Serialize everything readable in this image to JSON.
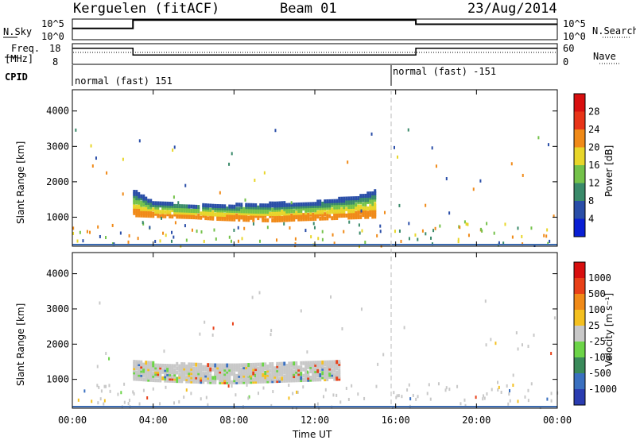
{
  "header": {
    "station": "Kerguelen (fitACF)",
    "beam": "Beam 01",
    "date": "23/Aug/2014"
  },
  "status_panels": {
    "nsky_label": "N.Sky",
    "nsky_ticks": [
      "10^5",
      "10^0"
    ],
    "nsearch_label": "N.Search",
    "nsearch_ticks": [
      "10^5",
      "10^0"
    ],
    "freq_label_1": "Freq.",
    "freq_label_2": "[MHz]",
    "freq_ticks": [
      "18",
      "8"
    ],
    "nave_label": "Nave",
    "nave_ticks": [
      "60",
      "0"
    ],
    "cpid_label": "CPID",
    "cpid_segments": [
      {
        "label": "normal (fast) 151",
        "start_hour": 0,
        "end_hour": 16
      },
      {
        "label": "normal (fast) -151",
        "start_hour": 16,
        "end_hour": 24
      }
    ],
    "frequency_steps": [
      {
        "start_hour": 0,
        "end_hour": 3,
        "level": 0.78
      },
      {
        "start_hour": 3,
        "end_hour": 17,
        "level": 0.45
      },
      {
        "start_hour": 17,
        "end_hour": 24,
        "level": 0.78
      }
    ],
    "nsky_steps": [
      {
        "start_hour": 0,
        "end_hour": 3,
        "level": 0.55
      },
      {
        "start_hour": 3,
        "end_hour": 17,
        "level": 0.95
      },
      {
        "start_hour": 17,
        "end_hour": 24,
        "level": 0.75
      }
    ]
  },
  "chart_data": [
    {
      "type": "heatmap",
      "name": "power",
      "xlabel": "",
      "ylabel": "Slant Range [km]",
      "ylim": [
        180,
        4600
      ],
      "yticks": [
        "1000",
        "2000",
        "3000",
        "4000"
      ],
      "ytick_values": [
        1000,
        2000,
        3000,
        4000
      ],
      "xlim": [
        0,
        24
      ],
      "colorbar_label": "Power [dB]",
      "colorbar_ticks": [
        "4",
        "8",
        "12",
        "16",
        "20",
        "24",
        "28"
      ],
      "colorbar_colors": [
        "#0a1fd4",
        "#2a4ea8",
        "#3a8a6a",
        "#74c24a",
        "#e8d62a",
        "#f08a18",
        "#e83418",
        "#d80f0f"
      ],
      "echo_region": {
        "start_hour": 3.0,
        "end_hour": 15.0,
        "lower_km": [
          1000,
          980,
          960,
          940,
          900,
          880,
          860,
          850,
          880,
          900,
          920,
          940,
          960
        ],
        "upper_km": [
          1700,
          1350,
          1320,
          1290,
          1280,
          1300,
          1320,
          1340,
          1350,
          1380,
          1450,
          1550,
          1700
        ]
      }
    },
    {
      "type": "heatmap",
      "name": "velocity",
      "xlabel": "Time UT",
      "ylabel": "Slant Range [km]",
      "ylim": [
        180,
        4600
      ],
      "yticks": [
        "1000",
        "2000",
        "3000",
        "4000"
      ],
      "ytick_values": [
        1000,
        2000,
        3000,
        4000
      ],
      "xlim": [
        0,
        24
      ],
      "xticks": [
        "00:00",
        "04:00",
        "08:00",
        "12:00",
        "16:00",
        "20:00",
        "00:00"
      ],
      "xtick_values": [
        0,
        4,
        8,
        12,
        16,
        20,
        24
      ],
      "colorbar_label": "Velocity [m s⁻¹]",
      "colorbar_ticks": [
        "1000",
        "500",
        "100",
        "25",
        "-25",
        "-100",
        "-500",
        "-1000"
      ],
      "colorbar_colors": [
        "#2a3cb0",
        "#3a70c0",
        "#3a8a5a",
        "#6cd448",
        "#c8c8c8",
        "#f4c020",
        "#f08a18",
        "#e84018",
        "#d80f0f"
      ],
      "echo_region": {
        "start_hour": 3.0,
        "end_hour": 13.2,
        "lower_km": [
          960,
          920,
          900,
          880,
          860,
          860,
          880,
          900,
          920,
          940,
          960
        ],
        "upper_km": [
          1500,
          1400,
          1380,
          1380,
          1390,
          1400,
          1420,
          1430,
          1440,
          1450,
          1480
        ]
      }
    }
  ]
}
